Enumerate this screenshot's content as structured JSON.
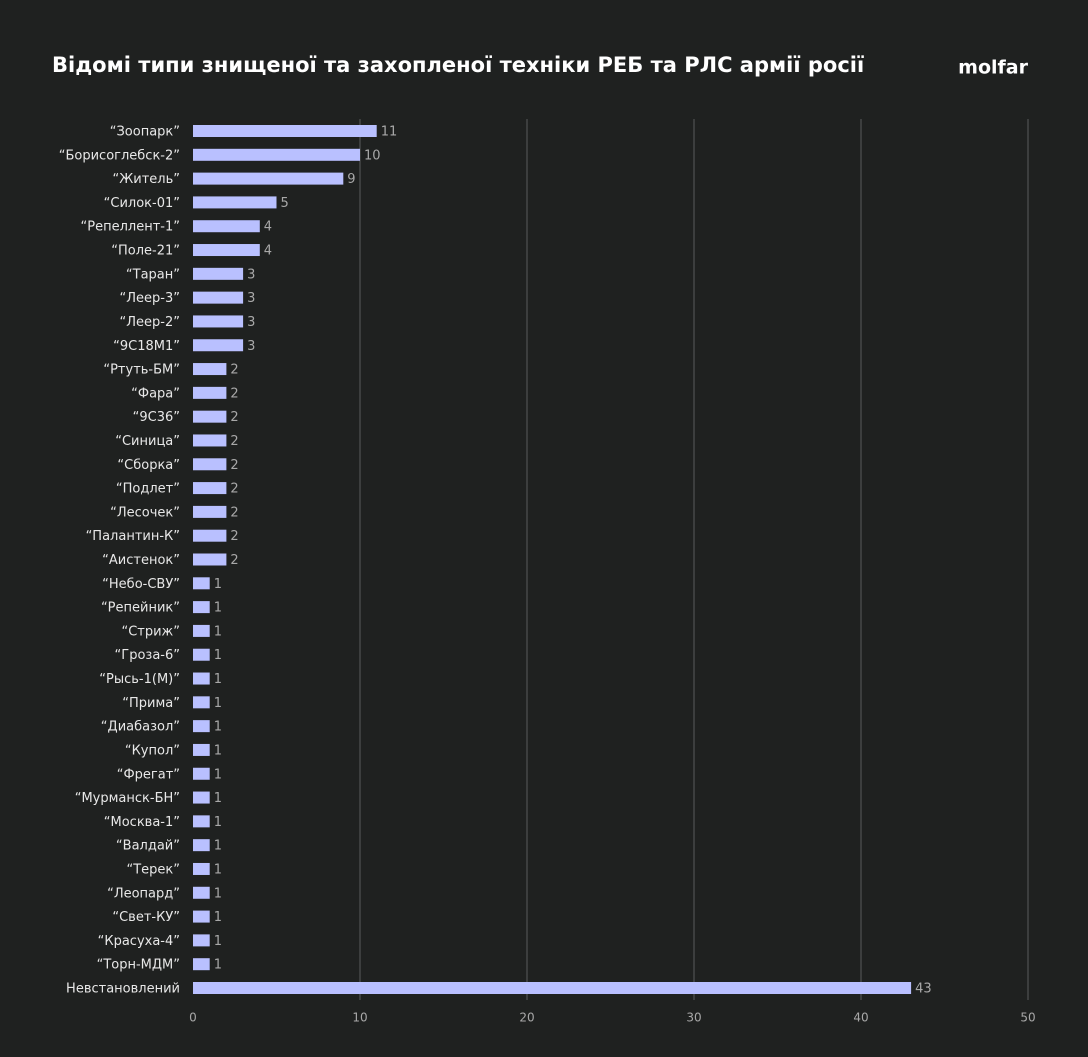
{
  "chart_data": {
    "type": "hbar",
    "title": "Відомі типи знищеної та захопленої техніки РЕБ та РЛС армії росії",
    "logo": "molfar",
    "categories": [
      "“Зоопарк”",
      "“Борисоглебск-2”",
      "“Житель”",
      "“Силок-01”",
      "“Репеллент-1”",
      "“Поле-21”",
      "“Таран”",
      "“Леер-3”",
      "“Леер-2”",
      "“9С18М1”",
      "“Ртуть-БМ”",
      "“Фара”",
      "“9С36”",
      "“Синица”",
      "“Сборка”",
      "“Подлет”",
      "“Лесочек”",
      "“Палантин-К”",
      "“Аистенок”",
      "“Небо-СВУ”",
      "“Репейник”",
      "“Стриж”",
      "“Гроза-6”",
      "“Рысь-1(М)”",
      "“Прима”",
      "“Диабазол”",
      "“Купол”",
      "“Фрегат”",
      "“Мурманск-БН”",
      "“Москва-1”",
      "“Валдай”",
      "“Терек”",
      "“Леопард”",
      "“Свет-КУ”",
      "“Красуха-4”",
      "“Торн-МДМ”",
      "Невстановлений"
    ],
    "values": [
      11,
      10,
      9,
      5,
      4,
      4,
      3,
      3,
      3,
      3,
      2,
      2,
      2,
      2,
      2,
      2,
      2,
      2,
      2,
      1,
      1,
      1,
      1,
      1,
      1,
      1,
      1,
      1,
      1,
      1,
      1,
      1,
      1,
      1,
      1,
      1,
      43
    ],
    "color": "#b9c0ff",
    "xlim": [
      0,
      50
    ],
    "xticks": [
      0,
      10,
      20,
      30,
      40,
      50
    ],
    "grid": true
  }
}
